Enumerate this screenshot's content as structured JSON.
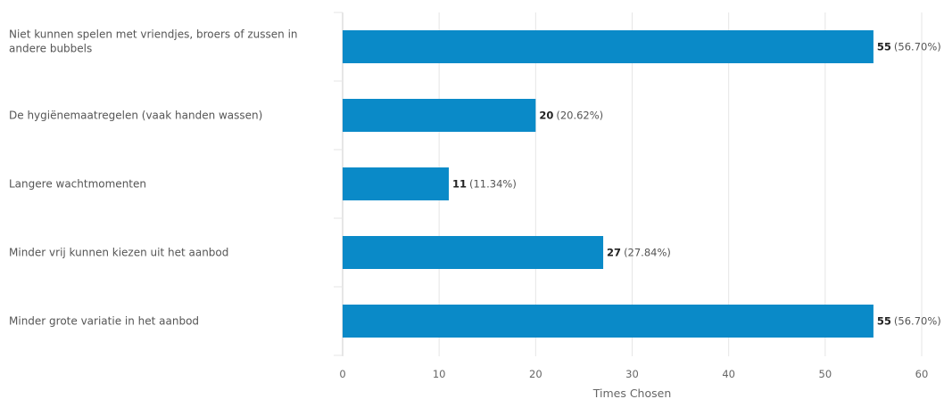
{
  "chart_data": {
    "type": "bar",
    "orientation": "horizontal",
    "categories": [
      [
        "Niet kunnen spelen met vriendjes, broers of zussen in",
        "andere bubbels"
      ],
      [
        "De hygiënemaatregelen (vaak handen wassen)"
      ],
      [
        "Langere wachtmomenten"
      ],
      [
        "Minder vrij kunnen kiezen uit het aanbod"
      ],
      [
        "Minder grote variatie in het aanbod"
      ]
    ],
    "values": [
      55,
      20,
      11,
      27,
      55
    ],
    "percent_labels": [
      "(56.70%)",
      "(20.62%)",
      "(11.34%)",
      "(27.84%)",
      "(56.70%)"
    ],
    "xlabel": "Times Chosen",
    "xlim": [
      0,
      60
    ],
    "xticks": [
      0,
      10,
      20,
      30,
      40,
      50,
      60
    ],
    "grid": true,
    "colors": {
      "bar": "#0a8ac8",
      "grid": "#e6e6e6",
      "axis": "#cccccc"
    }
  }
}
